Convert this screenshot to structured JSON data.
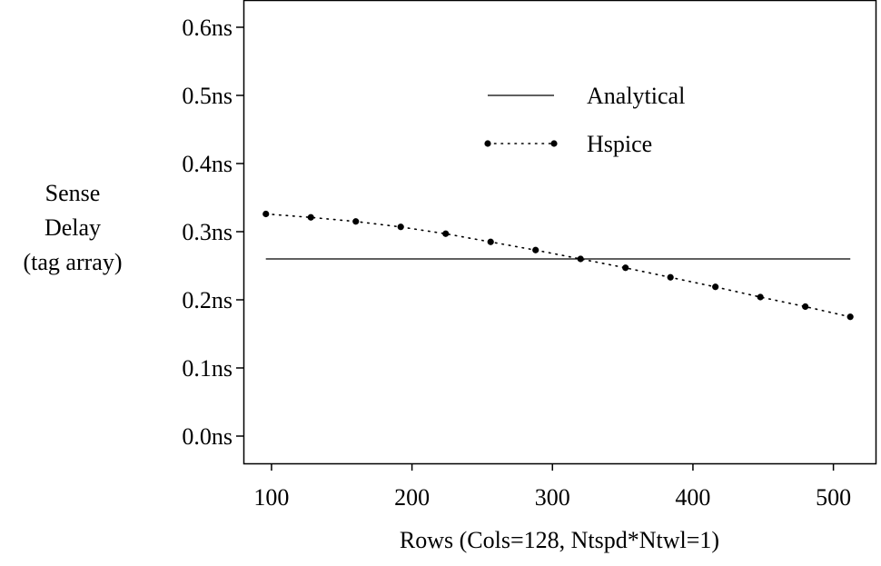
{
  "chart_data": {
    "type": "line",
    "xlabel": "Rows  (Cols=128, Ntspd*Ntwl=1)",
    "ylabel_lines": [
      "Sense",
      "Delay",
      "(tag array)"
    ],
    "xlim": [
      80,
      530
    ],
    "ylim": [
      -0.04,
      0.64
    ],
    "x_ticks": [
      100,
      200,
      300,
      400,
      500
    ],
    "x_tick_labels": [
      "100",
      "200",
      "300",
      "400",
      "500"
    ],
    "y_ticks": [
      0.0,
      0.1,
      0.2,
      0.3,
      0.4,
      0.5,
      0.6
    ],
    "y_tick_labels": [
      "0.0ns",
      "0.1ns",
      "0.2ns",
      "0.3ns",
      "0.4ns",
      "0.5ns",
      "0.6ns"
    ],
    "grid": false,
    "legend_position": "top-center",
    "series": [
      {
        "name": "Analytical",
        "style": "solid",
        "x": [
          96,
          512
        ],
        "y": [
          0.26,
          0.26
        ]
      },
      {
        "name": "Hspice",
        "style": "dotted-with-markers",
        "x": [
          96,
          128,
          160,
          192,
          224,
          256,
          288,
          320,
          352,
          384,
          416,
          448,
          480,
          512
        ],
        "y": [
          0.326,
          0.321,
          0.315,
          0.307,
          0.297,
          0.285,
          0.273,
          0.26,
          0.247,
          0.233,
          0.219,
          0.204,
          0.19,
          0.175
        ]
      }
    ]
  }
}
